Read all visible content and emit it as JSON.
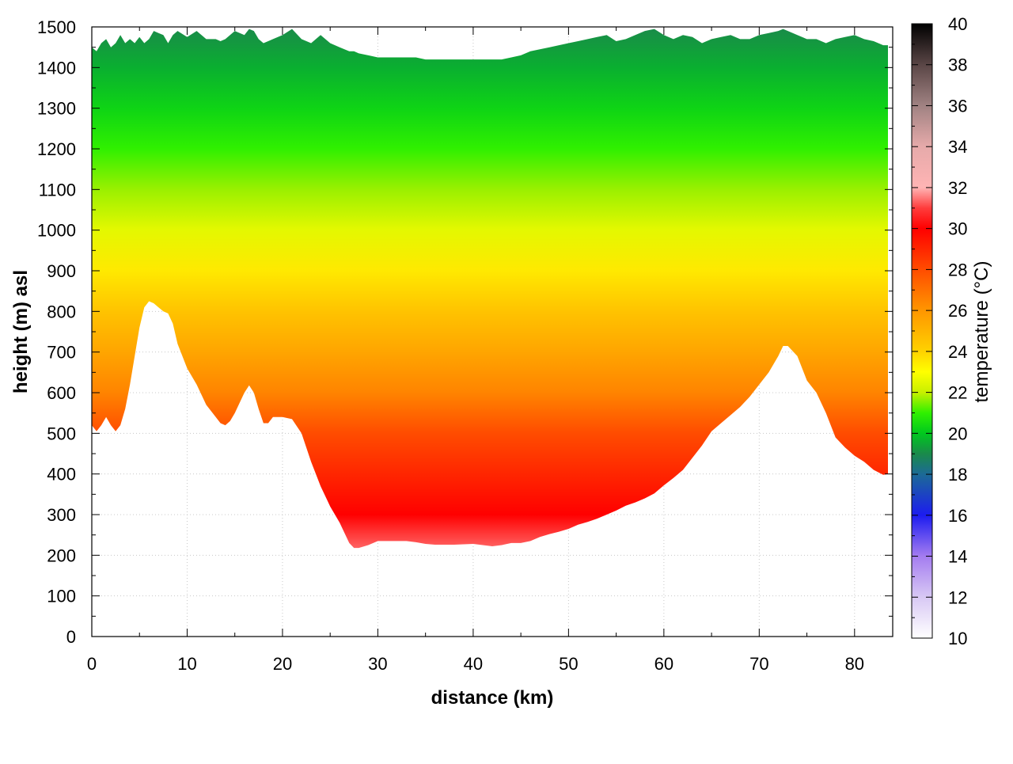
{
  "chart_data": {
    "type": "heatmap",
    "title": "",
    "xlabel": "distance (km)",
    "ylabel": "height (m) asl",
    "colorbar_label": "temperature (°C)",
    "xlim": [
      0,
      84
    ],
    "ylim": [
      0,
      1500
    ],
    "clim": [
      10,
      40
    ],
    "grid": true,
    "x_ticks": [
      0,
      10,
      20,
      30,
      40,
      50,
      60,
      70,
      80
    ],
    "y_ticks": [
      0,
      100,
      200,
      300,
      400,
      500,
      600,
      700,
      800,
      900,
      1000,
      1100,
      1200,
      1300,
      1400,
      1500
    ],
    "colorbar_ticks": [
      10,
      12,
      14,
      16,
      18,
      20,
      22,
      24,
      26,
      28,
      30,
      32,
      34,
      36,
      38,
      40
    ],
    "colormap": [
      {
        "t": 10,
        "color": "#ffffff"
      },
      {
        "t": 12,
        "color": "#d8c8f4"
      },
      {
        "t": 14,
        "color": "#a47cf0"
      },
      {
        "t": 16,
        "color": "#1c1cf0"
      },
      {
        "t": 18,
        "color": "#1c6a96"
      },
      {
        "t": 19,
        "color": "#1a8a4a"
      },
      {
        "t": 20,
        "color": "#00c81e"
      },
      {
        "t": 21,
        "color": "#30f000"
      },
      {
        "t": 22,
        "color": "#c8f000"
      },
      {
        "t": 23,
        "color": "#ffff00"
      },
      {
        "t": 24,
        "color": "#ffd200"
      },
      {
        "t": 26,
        "color": "#ff9600"
      },
      {
        "t": 28,
        "color": "#ff4c00"
      },
      {
        "t": 30,
        "color": "#ff0000"
      },
      {
        "t": 31,
        "color": "#ff3c3c"
      },
      {
        "t": 32,
        "color": "#ffb4b4"
      },
      {
        "t": 34,
        "color": "#e6aaaa"
      },
      {
        "t": 36,
        "color": "#a08282"
      },
      {
        "t": 38,
        "color": "#5a4646"
      },
      {
        "t": 40,
        "color": "#000000"
      }
    ],
    "terrain_profile": {
      "distance_km": [
        0,
        0.5,
        1,
        1.5,
        2,
        2.5,
        3,
        3.5,
        4,
        4.5,
        5,
        5.5,
        6,
        6.5,
        7,
        7.5,
        8,
        8.5,
        9,
        10,
        11,
        12,
        13,
        13.5,
        14,
        14.5,
        15,
        16,
        16.5,
        17,
        17.5,
        18,
        18.5,
        19,
        20,
        21,
        22,
        23,
        24,
        25,
        26,
        27,
        27.5,
        28,
        29,
        30,
        31,
        32,
        33,
        34,
        35,
        36,
        37,
        38,
        39,
        40,
        41,
        42,
        43,
        44,
        45,
        46,
        47,
        48,
        49,
        50,
        51,
        52,
        53,
        54,
        55,
        56,
        57,
        58,
        59,
        60,
        61,
        62,
        63,
        64,
        65,
        66,
        67,
        68,
        69,
        70,
        71,
        72,
        72.5,
        73,
        74,
        75,
        76,
        77,
        78,
        79,
        80,
        81,
        82,
        83,
        83.5
      ],
      "height_m": [
        520,
        505,
        520,
        540,
        520,
        505,
        520,
        560,
        620,
        690,
        760,
        810,
        825,
        820,
        810,
        800,
        795,
        770,
        720,
        660,
        620,
        570,
        540,
        525,
        520,
        530,
        550,
        600,
        618,
        600,
        560,
        525,
        525,
        540,
        540,
        535,
        500,
        430,
        370,
        320,
        280,
        230,
        218,
        218,
        225,
        235,
        235,
        235,
        235,
        232,
        228,
        226,
        226,
        226,
        227,
        228,
        225,
        222,
        225,
        230,
        230,
        235,
        245,
        252,
        258,
        265,
        275,
        282,
        290,
        300,
        310,
        322,
        330,
        340,
        352,
        372,
        390,
        410,
        440,
        470,
        505,
        525,
        545,
        565,
        590,
        620,
        650,
        690,
        715,
        715,
        690,
        630,
        600,
        550,
        490,
        465,
        445,
        430,
        410,
        398,
        400
      ],
      "top_m": [
        1450,
        1440,
        1460,
        1470,
        1450,
        1460,
        1480,
        1460,
        1470,
        1460,
        1475,
        1460,
        1470,
        1490,
        1485,
        1480,
        1460,
        1480,
        1490,
        1475,
        1490,
        1470,
        1470,
        1465,
        1470,
        1480,
        1490,
        1480,
        1495,
        1490,
        1470,
        1460,
        1465,
        1470,
        1480,
        1495,
        1470,
        1460,
        1480,
        1460,
        1450,
        1440,
        1440,
        1435,
        1430,
        1425,
        1425,
        1425,
        1425,
        1425,
        1420,
        1420,
        1420,
        1420,
        1420,
        1420,
        1420,
        1420,
        1420,
        1425,
        1430,
        1440,
        1445,
        1450,
        1455,
        1460,
        1465,
        1470,
        1475,
        1480,
        1465,
        1470,
        1480,
        1490,
        1495,
        1480,
        1470,
        1480,
        1475,
        1460,
        1470,
        1475,
        1480,
        1470,
        1470,
        1480,
        1485,
        1490,
        1495,
        1490,
        1480,
        1470,
        1470,
        1460,
        1470,
        1475,
        1480,
        1470,
        1465,
        1455,
        1455
      ]
    },
    "temperature_field": [
      {
        "height_m": 200,
        "temp_c": 31.5
      },
      {
        "height_m": 300,
        "temp_c": 30
      },
      {
        "height_m": 400,
        "temp_c": 29
      },
      {
        "height_m": 500,
        "temp_c": 28
      },
      {
        "height_m": 600,
        "temp_c": 26.5
      },
      {
        "height_m": 700,
        "temp_c": 25.5
      },
      {
        "height_m": 800,
        "temp_c": 24.5
      },
      {
        "height_m": 900,
        "temp_c": 23.5
      },
      {
        "height_m": 1000,
        "temp_c": 22.5
      },
      {
        "height_m": 1100,
        "temp_c": 21.7
      },
      {
        "height_m": 1200,
        "temp_c": 21
      },
      {
        "height_m": 1300,
        "temp_c": 20.3
      },
      {
        "height_m": 1400,
        "temp_c": 19.6
      },
      {
        "height_m": 1500,
        "temp_c": 19
      }
    ]
  }
}
